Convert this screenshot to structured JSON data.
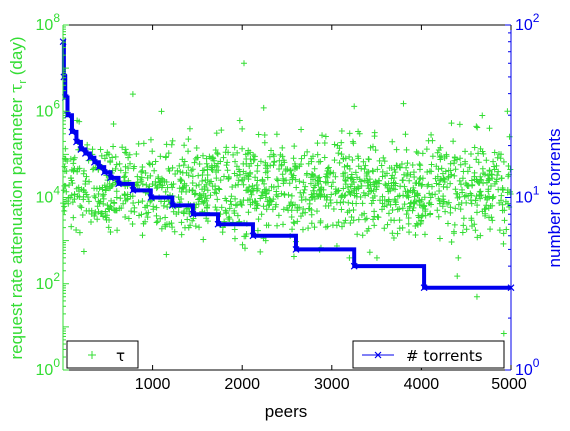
{
  "chart_data": {
    "type": "scatter",
    "xlabel": "peers",
    "ylabel_left_main": "request rate attenuation parameter ",
    "ylabel_left_symbol": "τ",
    "ylabel_left_sub": "r",
    "ylabel_left_unit": " (day)",
    "ylabel_right": "number of torrents",
    "xlim": [
      0,
      5000
    ],
    "ylim_left": [
      1,
      100000000
    ],
    "ylim_right": [
      1,
      100
    ],
    "yscale_left": "log",
    "yscale_right": "log",
    "x_ticks": [
      1000,
      2000,
      3000,
      4000,
      5000
    ],
    "x_tick_labels": [
      "1000",
      "2000",
      "3000",
      "4000",
      "5000"
    ],
    "left_tick_exponents": [
      "0",
      "2",
      "4",
      "6",
      "8"
    ],
    "right_tick_exponents": [
      "0",
      "1",
      "2"
    ],
    "tick_base": "10",
    "colors": {
      "tau": "#33dd33",
      "torrents": "#0000ee",
      "frame": "#000000"
    },
    "legend": [
      {
        "name": "τ",
        "marker": "plus",
        "placement": "bottom-left"
      },
      {
        "name": "# torrents",
        "marker": "x-line",
        "placement": "bottom-right"
      }
    ],
    "series": [
      {
        "name": "τ",
        "axis": "left",
        "marker": "plus",
        "distribution": {
          "n_points": 1400,
          "x_range": [
            1,
            5000
          ],
          "log10_center": 4.2,
          "log10_spread_typical": 0.55
        },
        "outliers": [
          {
            "x": 780,
            "y": 2500000
          },
          {
            "x": 2020,
            "y": 13000000
          },
          {
            "x": 2240,
            "y": 1200000
          },
          {
            "x": 4960,
            "y": 1000000
          },
          {
            "x": 3250,
            "y": 1300000
          },
          {
            "x": 3800,
            "y": 1500000
          },
          {
            "x": 4400,
            "y": 150
          },
          {
            "x": 4620,
            "y": 50
          },
          {
            "x": 4920,
            "y": 7
          }
        ]
      },
      {
        "name": "# torrents",
        "axis": "right",
        "marker": "x-line",
        "points": [
          {
            "x": 1,
            "y": 80
          },
          {
            "x": 10,
            "y": 50
          },
          {
            "x": 25,
            "y": 38
          },
          {
            "x": 50,
            "y": 30
          },
          {
            "x": 100,
            "y": 24
          },
          {
            "x": 150,
            "y": 21
          },
          {
            "x": 200,
            "y": 19
          },
          {
            "x": 250,
            "y": 18
          },
          {
            "x": 300,
            "y": 17
          },
          {
            "x": 350,
            "y": 16
          },
          {
            "x": 400,
            "y": 15
          },
          {
            "x": 460,
            "y": 14
          },
          {
            "x": 530,
            "y": 13
          },
          {
            "x": 620,
            "y": 12
          },
          {
            "x": 780,
            "y": 11
          },
          {
            "x": 980,
            "y": 10
          },
          {
            "x": 1220,
            "y": 9
          },
          {
            "x": 1450,
            "y": 8
          },
          {
            "x": 1730,
            "y": 7
          },
          {
            "x": 2120,
            "y": 6
          },
          {
            "x": 2600,
            "y": 5
          },
          {
            "x": 3250,
            "y": 4
          },
          {
            "x": 4030,
            "y": 3
          },
          {
            "x": 5000,
            "y": 3
          }
        ]
      }
    ]
  }
}
